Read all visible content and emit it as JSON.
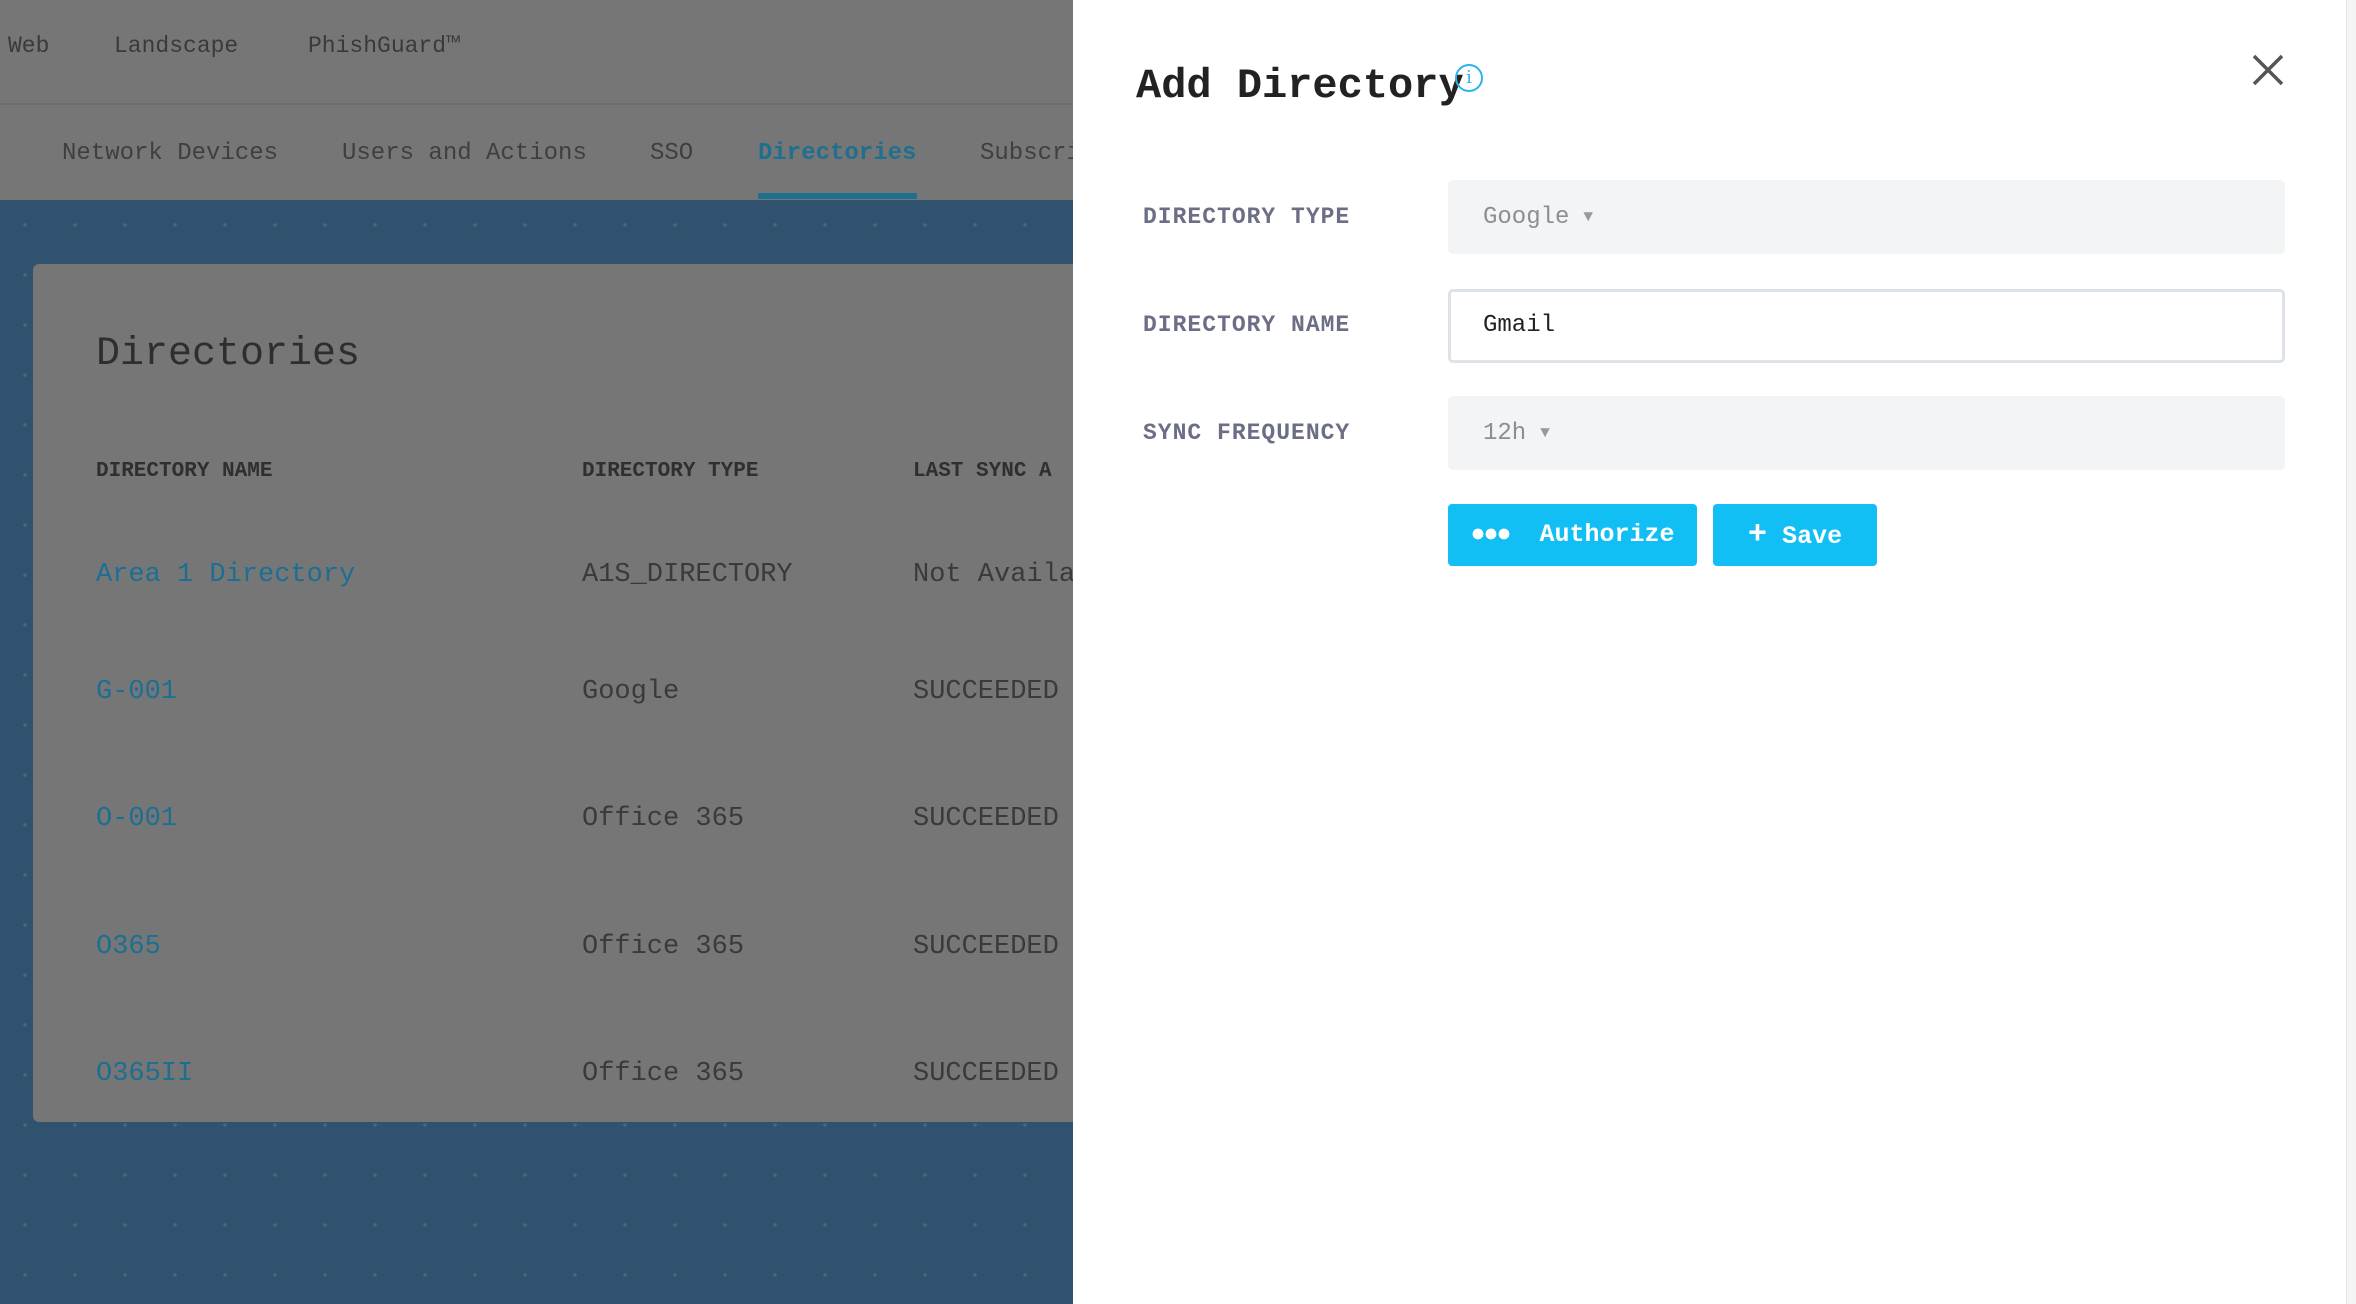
{
  "top_nav": [
    "Web",
    "Landscape",
    "PhishGuard™"
  ],
  "tabs": {
    "items": [
      "Network Devices",
      "Users and Actions",
      "SSO",
      "Directories",
      "Subscri"
    ],
    "active": "Directories"
  },
  "card": {
    "title": "Directories",
    "columns": [
      "DIRECTORY NAME",
      "DIRECTORY TYPE",
      "LAST SYNC A"
    ],
    "rows": [
      [
        "Area 1 Directory",
        "A1S_DIRECTORY",
        "Not Availa"
      ],
      [
        "G-001",
        "Google",
        "SUCCEEDED"
      ],
      [
        "O-001",
        "Office 365",
        "SUCCEEDED"
      ],
      [
        "O365",
        "Office 365",
        "SUCCEEDED"
      ],
      [
        "O365II",
        "Office 365",
        "SUCCEEDED"
      ]
    ]
  },
  "panel": {
    "title": "Add Directory",
    "info_icon": "i",
    "fields": {
      "type": {
        "label": "DIRECTORY TYPE",
        "value": "Google"
      },
      "name": {
        "label": "DIRECTORY NAME",
        "value": "Gmail"
      },
      "sync": {
        "label": "SYNC FREQUENCY",
        "value": "12h"
      }
    },
    "authorize_label": "Authorize",
    "save_label": "Save"
  },
  "colors": {
    "accent": "#12bff5",
    "link": "#2bb3ec",
    "tab_active": "#2aa0d0"
  }
}
